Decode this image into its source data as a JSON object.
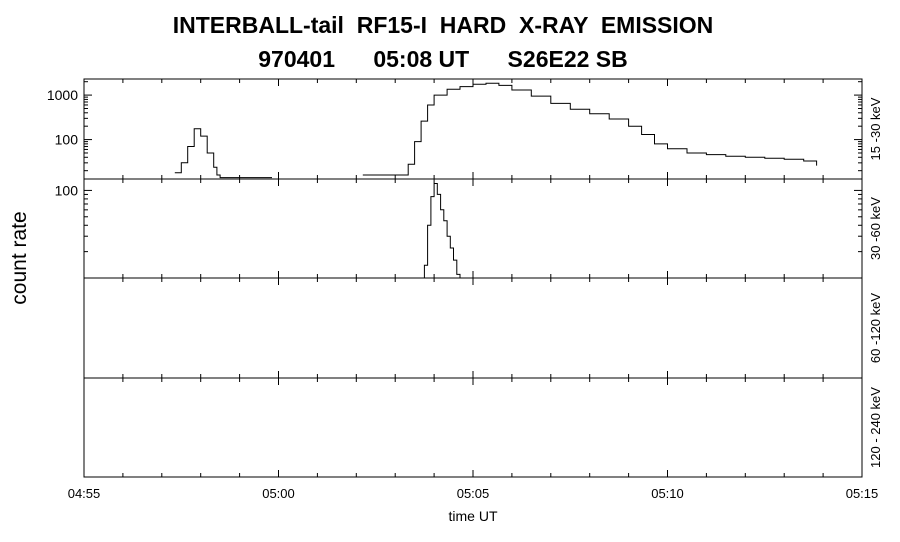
{
  "title_line1": "INTERBALL-tail  RF15-I  HARD  X-RAY  EMISSION",
  "title_line2": "970401      05:08 UT      S26E22 SB",
  "chart_data": {
    "type": "line",
    "xlabel": "time UT",
    "ylabel": "count rate",
    "x_ticks": [
      "04:55",
      "05:00",
      "05:05",
      "05:10",
      "05:15"
    ],
    "x_range_minutes_after_0455": [
      0,
      20
    ],
    "panels": [
      {
        "name": "15 -30 keV",
        "yscale": "log",
        "ylim": [
          13,
          2300
        ],
        "y_ticks": [
          100,
          1000
        ],
        "y_tick_labels": [
          "100",
          "1000"
        ],
        "series": [
          {
            "x": [
              "04:57:20",
              "04:57:30",
              "04:57:40",
              "04:57:50",
              "04:58:00",
              "04:58:10",
              "04:58:20",
              "04:58:25",
              "04:58:30",
              "04:59:00",
              "04:59:30",
              "04:59:50"
            ],
            "y": [
              18,
              30,
              70,
              175,
              120,
              50,
              24,
              16,
              14,
              14,
              14,
              14
            ]
          },
          {
            "x": [
              "05:02:10",
              "05:02:40",
              "05:03:10",
              "05:03:20",
              "05:03:30",
              "05:03:40",
              "05:03:50",
              "05:04:00",
              "05:04:20",
              "05:04:40",
              "05:05:00",
              "05:05:20",
              "05:05:40",
              "05:06:00",
              "05:06:30",
              "05:07:00",
              "05:07:30",
              "05:08:00",
              "05:08:30",
              "05:09:00",
              "05:09:20",
              "05:09:40",
              "05:10:00",
              "05:10:30",
              "05:11:00",
              "05:11:30",
              "05:12:00",
              "05:12:30",
              "05:13:00",
              "05:13:30",
              "05:13:50"
            ],
            "y": [
              16,
              16,
              16,
              28,
              90,
              260,
              600,
              1000,
              1350,
              1550,
              1750,
              1850,
              1650,
              1300,
              950,
              650,
              480,
              380,
              290,
              200,
              130,
              80,
              62,
              50,
              46,
              42,
              40,
              38,
              36,
              33,
              26
            ]
          }
        ]
      },
      {
        "name": "30 -60 keV",
        "yscale": "log",
        "ylim": [
          10,
          135
        ],
        "y_ticks": [
          100
        ],
        "y_tick_labels": [
          "100"
        ],
        "series": [
          {
            "x": [
              "05:03:40",
              "05:03:45",
              "05:03:50",
              "05:03:55",
              "05:04:00",
              "05:04:05",
              "05:04:10",
              "05:04:15",
              "05:04:20",
              "05:04:25",
              "05:04:30",
              "05:04:35",
              "05:04:40"
            ],
            "y": [
              10,
              14,
              40,
              85,
              120,
              90,
              60,
              45,
              30,
              22,
              16,
              11,
              10
            ]
          }
        ]
      },
      {
        "name": "60 -120 keV",
        "yscale": "log",
        "y_tick_labels": [],
        "series": []
      },
      {
        "name": "120 - 240 keV",
        "yscale": "log",
        "y_tick_labels": [],
        "series": []
      }
    ]
  }
}
